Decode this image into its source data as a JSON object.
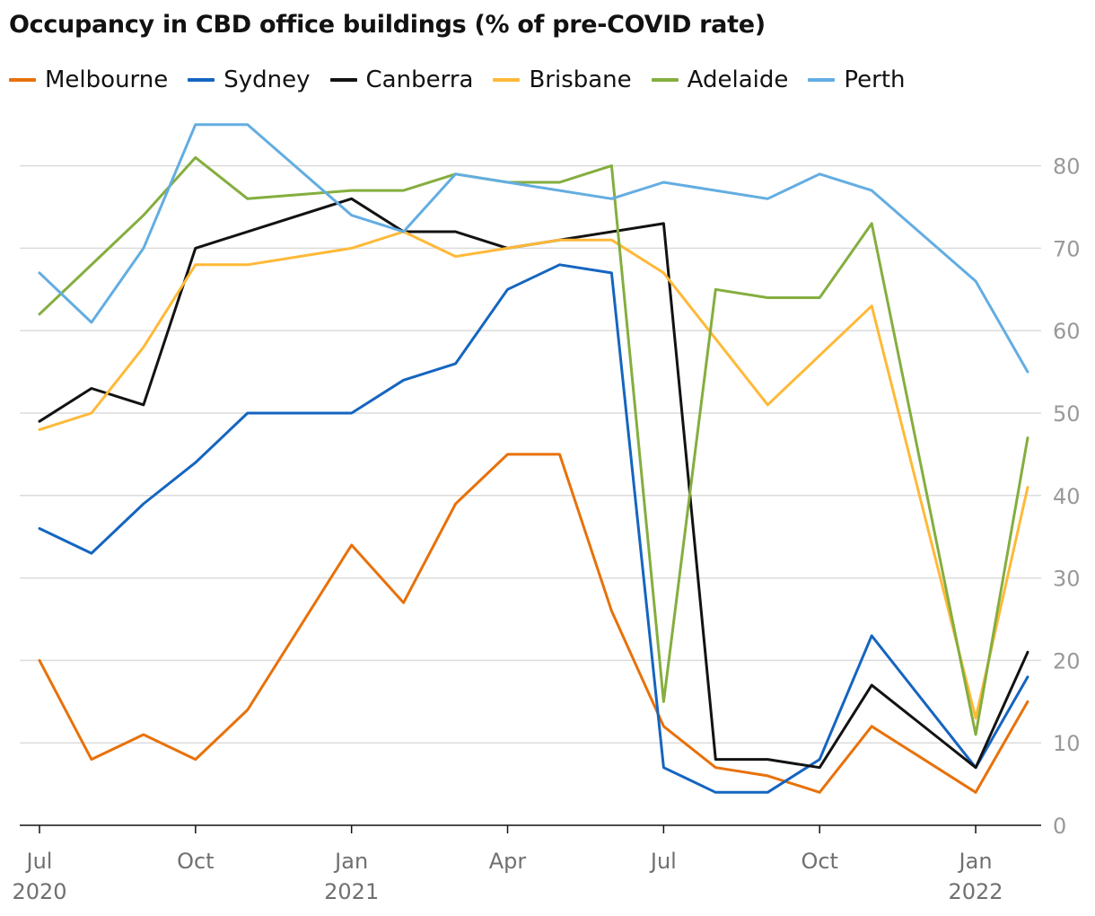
{
  "chart_data": {
    "type": "line",
    "title": "Occupancy in CBD office buildings (% of pre-COVID rate)",
    "xlabel": "",
    "ylabel": "",
    "ylim": [
      0,
      88
    ],
    "y_ticks": [
      0,
      10,
      20,
      30,
      40,
      50,
      60,
      70,
      80
    ],
    "y_axis_position": "right",
    "grid": true,
    "legend_position": "top-left",
    "x": [
      "2020-07",
      "2020-08",
      "2020-09",
      "2020-10",
      "2020-11",
      "2020-12",
      "2021-01",
      "2021-02",
      "2021-03",
      "2021-04",
      "2021-05",
      "2021-06",
      "2021-07",
      "2021-08",
      "2021-09",
      "2021-10",
      "2021-11",
      "2021-12",
      "2022-01",
      "2022-02"
    ],
    "x_tick_labels": [
      {
        "month": "2020-07",
        "label": "Jul",
        "year": "2020"
      },
      {
        "month": "2020-10",
        "label": "Oct",
        "year": ""
      },
      {
        "month": "2021-01",
        "label": "Jan",
        "year": "2021"
      },
      {
        "month": "2021-04",
        "label": "Apr",
        "year": ""
      },
      {
        "month": "2021-07",
        "label": "Jul",
        "year": ""
      },
      {
        "month": "2021-10",
        "label": "Oct",
        "year": ""
      },
      {
        "month": "2022-01",
        "label": "Jan",
        "year": "2022"
      }
    ],
    "series": [
      {
        "name": "Melbourne",
        "color": "#e8710a",
        "values": [
          20,
          8,
          11,
          8,
          14,
          null,
          34,
          27,
          39,
          45,
          45,
          26,
          12,
          7,
          6,
          4,
          12,
          null,
          4,
          15
        ]
      },
      {
        "name": "Sydney",
        "color": "#1565c0",
        "values": [
          36,
          33,
          39,
          44,
          50,
          null,
          50,
          54,
          56,
          65,
          68,
          67,
          7,
          4,
          4,
          8,
          23,
          null,
          7,
          18
        ]
      },
      {
        "name": "Canberra",
        "color": "#121212",
        "values": [
          49,
          53,
          51,
          70,
          null,
          null,
          76,
          72,
          72,
          70,
          null,
          null,
          73,
          8,
          8,
          7,
          17,
          null,
          7,
          21
        ]
      },
      {
        "name": "Brisbane",
        "color": "#ffb938",
        "values": [
          48,
          50,
          58,
          68,
          68,
          null,
          70,
          72,
          69,
          70,
          71,
          71,
          67,
          null,
          51,
          null,
          63,
          null,
          13,
          41
        ]
      },
      {
        "name": "Adelaide",
        "color": "#84ae3e",
        "values": [
          62,
          null,
          74,
          81,
          76,
          null,
          77,
          77,
          79,
          78,
          78,
          80,
          15,
          65,
          64,
          64,
          73,
          null,
          11,
          47
        ]
      },
      {
        "name": "Perth",
        "color": "#63ade2",
        "values": [
          67,
          61,
          70,
          85,
          85,
          null,
          74,
          72,
          79,
          78,
          null,
          76,
          78,
          null,
          76,
          79,
          77,
          null,
          66,
          55
        ]
      }
    ]
  }
}
